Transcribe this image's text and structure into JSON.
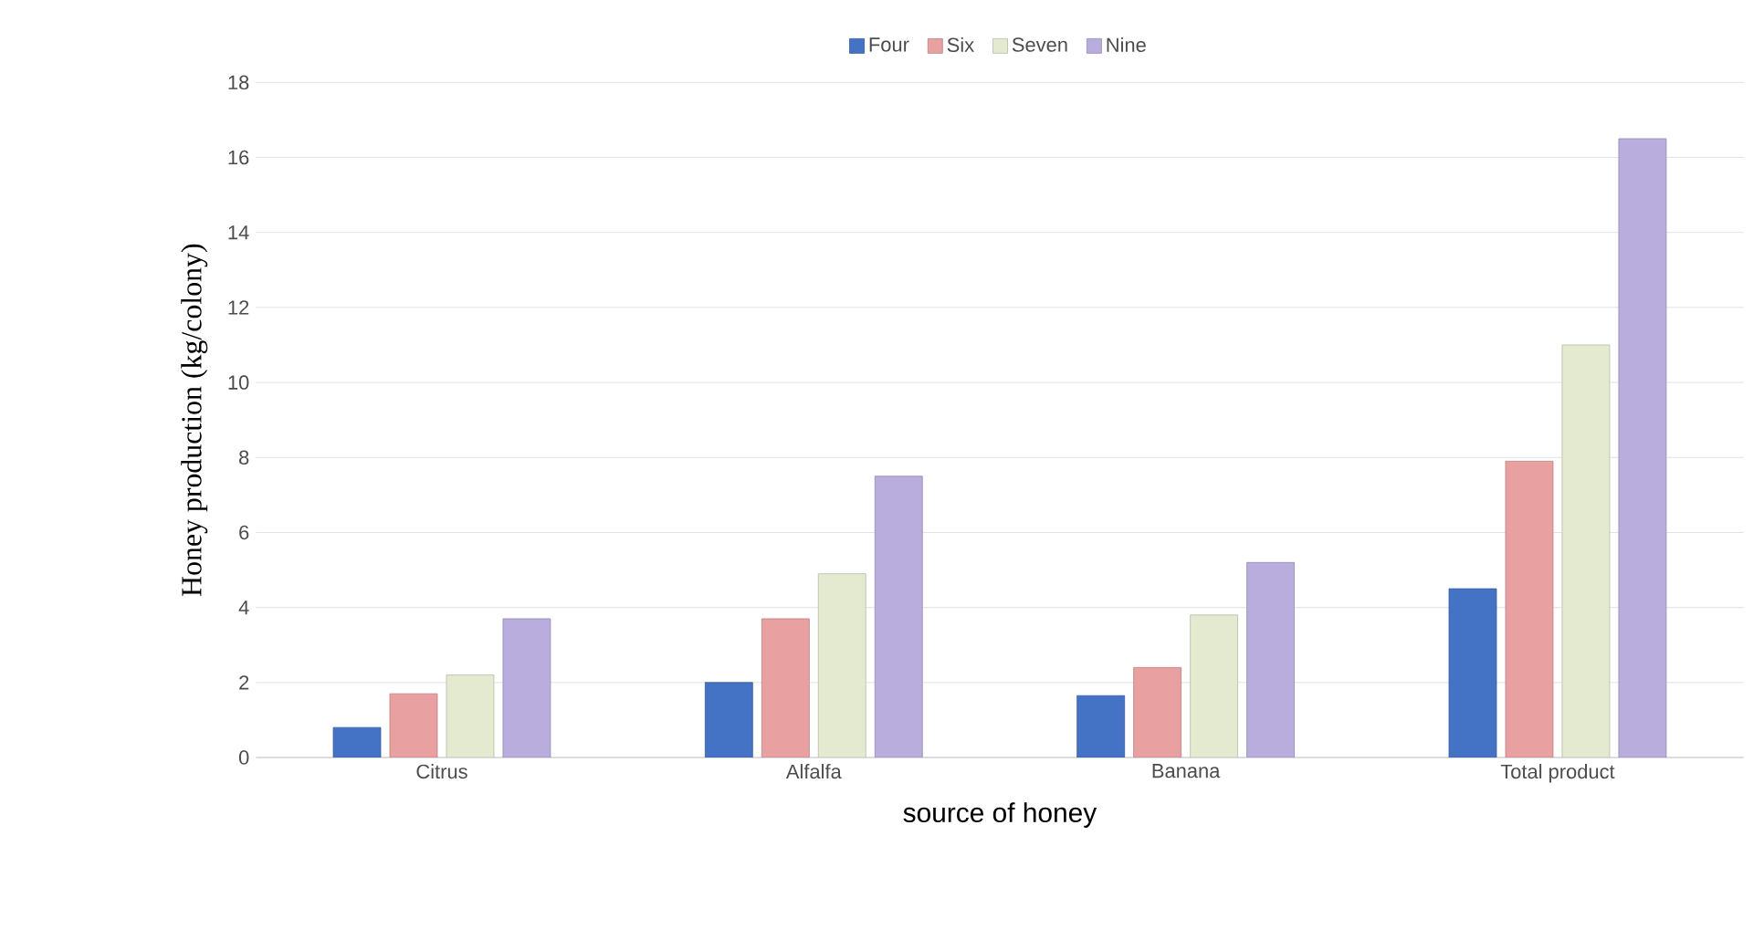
{
  "chart_data": {
    "type": "bar",
    "xlabel": "source of honey",
    "ylabel": "Honey production (kg/colony)",
    "categories": [
      "Citrus",
      "Alfalfa",
      "Banana",
      "Total product"
    ],
    "series": [
      {
        "name": "Four",
        "color": "#4472c4",
        "values": [
          0.8,
          2.0,
          1.65,
          4.5
        ]
      },
      {
        "name": "Six",
        "color": "#e8a0a0",
        "values": [
          1.7,
          3.7,
          2.4,
          7.9
        ]
      },
      {
        "name": "Seven",
        "color": "#e4ead0",
        "values": [
          2.2,
          4.9,
          3.8,
          11.0
        ]
      },
      {
        "name": "Nine",
        "color": "#b8addc",
        "values": [
          3.7,
          7.5,
          5.2,
          16.5
        ]
      }
    ],
    "ylim": [
      0,
      18
    ],
    "yticks": [
      0,
      2,
      4,
      6,
      8,
      10,
      12,
      14,
      16,
      18
    ],
    "grid": "y",
    "legend": "top"
  }
}
